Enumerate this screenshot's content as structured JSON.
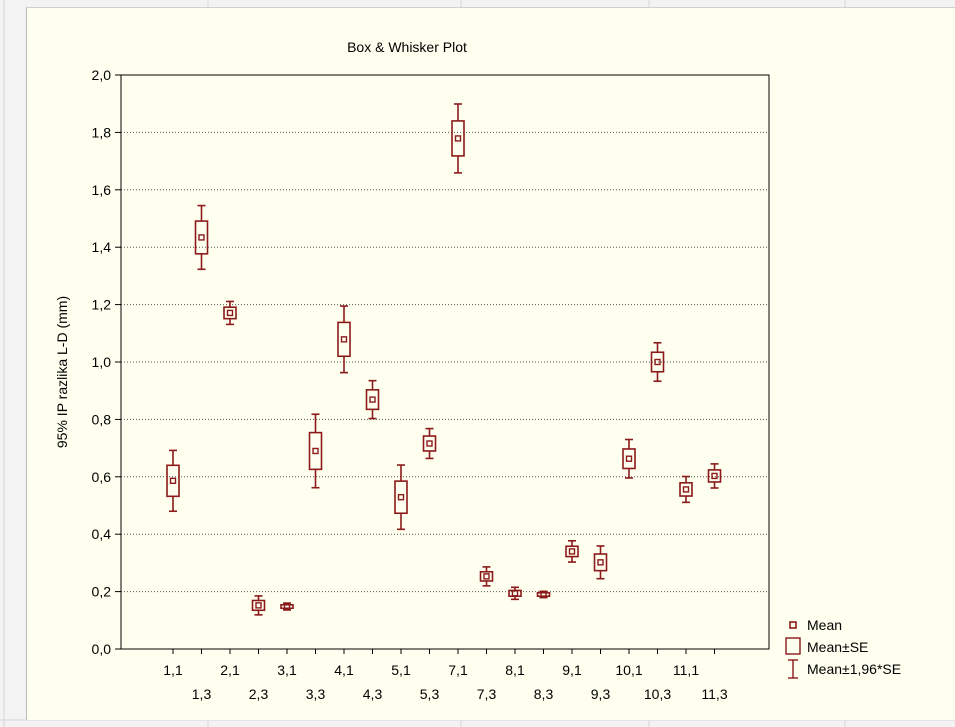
{
  "chart_data": {
    "type": "box",
    "title": "Box & Whisker Plot",
    "ylabel": "95% IP razlika L-D (mm)",
    "xlabel": "",
    "ylim": [
      0,
      2.0
    ],
    "yticks": [
      "0,0",
      "0,2",
      "0,4",
      "0,6",
      "0,8",
      "1,0",
      "1,2",
      "1,4",
      "1,6",
      "1,8",
      "2,0"
    ],
    "grid": "horizontal dotted",
    "color": "#8b1a1a",
    "x_labels_row1": [
      "1,1",
      "2,1",
      "3,1",
      "4,1",
      "5,1",
      "7,1",
      "8,1",
      "9,1",
      "10,1",
      "11,1"
    ],
    "x_labels_row2": [
      "1,3",
      "2,3",
      "3,3",
      "4,3",
      "5,3",
      "7,3",
      "8,3",
      "9,3",
      "10,3",
      "11,3"
    ],
    "series": [
      {
        "label": "1,1",
        "mean": 0.586,
        "se": 0.054,
        "ci95": 0.106
      },
      {
        "label": "1,3",
        "mean": 1.434,
        "se": 0.057,
        "ci95": 0.111
      },
      {
        "label": "2,1",
        "mean": 1.171,
        "se": 0.02,
        "ci95": 0.04
      },
      {
        "label": "2,3",
        "mean": 0.152,
        "se": 0.017,
        "ci95": 0.033
      },
      {
        "label": "3,1",
        "mean": 0.148,
        "se": 0.006,
        "ci95": 0.012
      },
      {
        "label": "3,3",
        "mean": 0.69,
        "se": 0.064,
        "ci95": 0.128
      },
      {
        "label": "4,1",
        "mean": 1.079,
        "se": 0.059,
        "ci95": 0.116
      },
      {
        "label": "4,3",
        "mean": 0.869,
        "se": 0.034,
        "ci95": 0.066
      },
      {
        "label": "5,1",
        "mean": 0.529,
        "se": 0.056,
        "ci95": 0.112
      },
      {
        "label": "5,3",
        "mean": 0.716,
        "se": 0.026,
        "ci95": 0.052
      },
      {
        "label": "7,1",
        "mean": 1.779,
        "se": 0.061,
        "ci95": 0.12
      },
      {
        "label": "7,3",
        "mean": 0.253,
        "se": 0.016,
        "ci95": 0.033
      },
      {
        "label": "8,1",
        "mean": 0.194,
        "se": 0.01,
        "ci95": 0.021
      },
      {
        "label": "8,3",
        "mean": 0.19,
        "se": 0.006,
        "ci95": 0.011
      },
      {
        "label": "9,1",
        "mean": 0.34,
        "se": 0.018,
        "ci95": 0.037
      },
      {
        "label": "9,3",
        "mean": 0.302,
        "se": 0.029,
        "ci95": 0.057
      },
      {
        "label": "10,1",
        "mean": 0.663,
        "se": 0.034,
        "ci95": 0.067
      },
      {
        "label": "10,3",
        "mean": 1.0,
        "se": 0.034,
        "ci95": 0.067
      },
      {
        "label": "11,1",
        "mean": 0.556,
        "se": 0.023,
        "ci95": 0.045
      },
      {
        "label": "11,3",
        "mean": 0.603,
        "se": 0.021,
        "ci95": 0.042
      }
    ],
    "legend": {
      "position": "bottom-right",
      "items": [
        {
          "symbol": "small-square",
          "label": "Mean"
        },
        {
          "symbol": "box",
          "label": "Mean±SE"
        },
        {
          "symbol": "whisker",
          "label": "Mean±1,96*SE"
        }
      ]
    }
  }
}
